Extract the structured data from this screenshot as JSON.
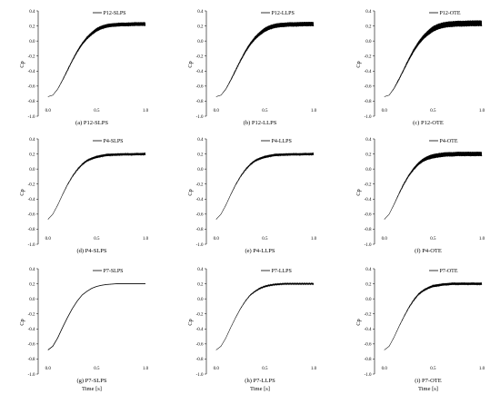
{
  "chart_data": [
    {
      "type": "line",
      "panel_id": "a",
      "caption": "(a) P12-SLPS",
      "legend": "P12-SLPS",
      "ylabel": "Cp",
      "xlabel": "",
      "xlim": [
        -0.1,
        1.0
      ],
      "ylim": [
        -1.0,
        0.4
      ],
      "x_ticks": [
        "0.0",
        "0.5",
        "1.0"
      ],
      "y_ticks": [
        "-1.0",
        "-0.8",
        "-0.6",
        "-0.4",
        "-0.2",
        "0.0",
        "0.2",
        "0.4"
      ],
      "x": [
        0.0,
        0.05,
        0.1,
        0.15,
        0.2,
        0.25,
        0.3,
        0.35,
        0.4,
        0.45,
        0.5,
        0.55,
        0.6,
        0.65,
        0.7,
        0.75,
        0.8,
        0.85,
        0.9,
        0.95,
        1.0
      ],
      "y": [
        -0.74,
        -0.72,
        -0.64,
        -0.52,
        -0.39,
        -0.26,
        -0.14,
        -0.04,
        0.04,
        0.1,
        0.15,
        0.18,
        0.2,
        0.21,
        0.215,
        0.22,
        0.22,
        0.222,
        0.225,
        0.225,
        0.225
      ],
      "oscillation": 0.025
    },
    {
      "type": "line",
      "panel_id": "b",
      "caption": "(b) P12-LLPS",
      "legend": "P12-LLPS",
      "ylabel": "Cp",
      "xlabel": "",
      "xlim": [
        -0.1,
        1.0
      ],
      "ylim": [
        -1.0,
        0.4
      ],
      "x_ticks": [
        "0.0",
        "0.5",
        "1.0"
      ],
      "y_ticks": [
        "-1.0",
        "-0.8",
        "-0.6",
        "-0.4",
        "-0.2",
        "0.0",
        "0.2",
        "0.4"
      ],
      "x": [
        0.0,
        0.05,
        0.1,
        0.15,
        0.2,
        0.25,
        0.3,
        0.35,
        0.4,
        0.45,
        0.5,
        0.55,
        0.6,
        0.65,
        0.7,
        0.75,
        0.8,
        0.85,
        0.9,
        0.95,
        1.0
      ],
      "y": [
        -0.74,
        -0.72,
        -0.64,
        -0.52,
        -0.39,
        -0.26,
        -0.14,
        -0.04,
        0.04,
        0.1,
        0.15,
        0.18,
        0.2,
        0.21,
        0.215,
        0.22,
        0.22,
        0.222,
        0.225,
        0.225,
        0.225
      ],
      "oscillation": 0.03
    },
    {
      "type": "line",
      "panel_id": "c",
      "caption": "(c) P12-OTE",
      "legend": "P12-OTE",
      "ylabel": "Cp",
      "xlabel": "",
      "xlim": [
        -0.1,
        1.0
      ],
      "ylim": [
        -1.0,
        0.4
      ],
      "x_ticks": [
        "0.0",
        "0.5",
        "1.0"
      ],
      "y_ticks": [
        "-1.0",
        "-0.8",
        "-0.6",
        "-0.4",
        "-0.2",
        "0.0",
        "0.2",
        "0.4"
      ],
      "x": [
        0.0,
        0.05,
        0.1,
        0.15,
        0.2,
        0.25,
        0.3,
        0.35,
        0.4,
        0.45,
        0.5,
        0.55,
        0.6,
        0.65,
        0.7,
        0.75,
        0.8,
        0.85,
        0.9,
        0.95,
        1.0
      ],
      "y": [
        -0.74,
        -0.72,
        -0.63,
        -0.51,
        -0.38,
        -0.25,
        -0.13,
        -0.03,
        0.05,
        0.11,
        0.16,
        0.19,
        0.21,
        0.22,
        0.225,
        0.23,
        0.23,
        0.232,
        0.235,
        0.235,
        0.235
      ],
      "oscillation": 0.04
    },
    {
      "type": "line",
      "panel_id": "d",
      "caption": "(d) P4-SLPS",
      "legend": "P4-SLPS",
      "ylabel": "Cp",
      "xlabel": "",
      "xlim": [
        -0.1,
        1.0
      ],
      "ylim": [
        -1.0,
        0.4
      ],
      "x_ticks": [
        "0.0",
        "0.5",
        "1.0"
      ],
      "y_ticks": [
        "-1.0",
        "-0.8",
        "-0.6",
        "-0.4",
        "-0.2",
        "0.0",
        "0.2",
        "0.4"
      ],
      "x": [
        0.0,
        0.05,
        0.1,
        0.15,
        0.2,
        0.25,
        0.3,
        0.35,
        0.4,
        0.45,
        0.5,
        0.55,
        0.6,
        0.65,
        0.7,
        0.75,
        0.8,
        0.85,
        0.9,
        0.95,
        1.0
      ],
      "y": [
        -0.67,
        -0.6,
        -0.48,
        -0.34,
        -0.21,
        -0.1,
        -0.01,
        0.06,
        0.11,
        0.14,
        0.16,
        0.175,
        0.185,
        0.19,
        0.19,
        0.195,
        0.195,
        0.195,
        0.197,
        0.198,
        0.2
      ],
      "oscillation": 0.015
    },
    {
      "type": "line",
      "panel_id": "e",
      "caption": "(e) P4-LLPS",
      "legend": "P4-LLPS",
      "ylabel": "Cp",
      "xlabel": "",
      "xlim": [
        -0.1,
        1.0
      ],
      "ylim": [
        -1.0,
        0.4
      ],
      "x_ticks": [
        "0.0",
        "0.5",
        "1.0"
      ],
      "y_ticks": [
        "-1.0",
        "-0.8",
        "-0.6",
        "-0.4",
        "-0.2",
        "0.0",
        "0.2",
        "0.4"
      ],
      "x": [
        0.0,
        0.05,
        0.1,
        0.15,
        0.2,
        0.25,
        0.3,
        0.35,
        0.4,
        0.45,
        0.5,
        0.55,
        0.6,
        0.65,
        0.7,
        0.75,
        0.8,
        0.85,
        0.9,
        0.95,
        1.0
      ],
      "y": [
        -0.67,
        -0.6,
        -0.48,
        -0.34,
        -0.21,
        -0.1,
        -0.01,
        0.06,
        0.11,
        0.14,
        0.16,
        0.175,
        0.185,
        0.19,
        0.19,
        0.195,
        0.195,
        0.195,
        0.197,
        0.198,
        0.2
      ],
      "oscillation": 0.015
    },
    {
      "type": "line",
      "panel_id": "f",
      "caption": "(f) P4-OTE",
      "legend": "P4-OTE",
      "ylabel": "Cp",
      "xlabel": "",
      "xlim": [
        -0.1,
        1.0
      ],
      "ylim": [
        -1.0,
        0.4
      ],
      "x_ticks": [
        "0.0",
        "0.5",
        "1.0"
      ],
      "y_ticks": [
        "-1.0",
        "-0.8",
        "-0.6",
        "-0.4",
        "-0.2",
        "0.0",
        "0.2",
        "0.4"
      ],
      "x": [
        0.0,
        0.05,
        0.1,
        0.15,
        0.2,
        0.25,
        0.3,
        0.35,
        0.4,
        0.45,
        0.5,
        0.55,
        0.6,
        0.65,
        0.7,
        0.75,
        0.8,
        0.85,
        0.9,
        0.95,
        1.0
      ],
      "y": [
        -0.67,
        -0.6,
        -0.47,
        -0.33,
        -0.2,
        -0.09,
        0.0,
        0.07,
        0.12,
        0.15,
        0.17,
        0.18,
        0.19,
        0.195,
        0.195,
        0.2,
        0.2,
        0.2,
        0.2,
        0.2,
        0.2
      ],
      "oscillation": 0.03
    },
    {
      "type": "line",
      "panel_id": "g",
      "caption": "(g) P7-SLPS",
      "legend": "P7-SLPS",
      "ylabel": "Cp",
      "xlabel": "Time [s]",
      "xlim": [
        -0.1,
        1.0
      ],
      "ylim": [
        -1.0,
        0.4
      ],
      "x_ticks": [
        "0.0",
        "0.5",
        "1.0"
      ],
      "y_ticks": [
        "-1.0",
        "-0.8",
        "-0.6",
        "-0.4",
        "-0.2",
        "0.0",
        "0.2",
        "0.4"
      ],
      "x": [
        0.0,
        0.05,
        0.1,
        0.15,
        0.2,
        0.25,
        0.3,
        0.35,
        0.4,
        0.45,
        0.5,
        0.55,
        0.6,
        0.65,
        0.7,
        0.75,
        0.8,
        0.85,
        0.9,
        0.95,
        1.0
      ],
      "y": [
        -0.68,
        -0.63,
        -0.52,
        -0.38,
        -0.25,
        -0.13,
        -0.03,
        0.05,
        0.1,
        0.14,
        0.165,
        0.18,
        0.19,
        0.195,
        0.2,
        0.2,
        0.2,
        0.2,
        0.2,
        0.2,
        0.2
      ],
      "oscillation": 0.0
    },
    {
      "type": "line",
      "panel_id": "h",
      "caption": "(h) P7-LLPS",
      "legend": "P7-LLPS",
      "ylabel": "Cp",
      "xlabel": "Time [s]",
      "xlim": [
        -0.1,
        1.0
      ],
      "ylim": [
        -1.0,
        0.4
      ],
      "x_ticks": [
        "0.0",
        "0.5",
        "1.0"
      ],
      "y_ticks": [
        "-1.0",
        "-0.8",
        "-0.6",
        "-0.4",
        "-0.2",
        "0.0",
        "0.2",
        "0.4"
      ],
      "x": [
        0.0,
        0.05,
        0.1,
        0.15,
        0.2,
        0.25,
        0.3,
        0.35,
        0.4,
        0.45,
        0.5,
        0.55,
        0.6,
        0.65,
        0.7,
        0.75,
        0.8,
        0.85,
        0.9,
        0.95,
        1.0
      ],
      "y": [
        -0.68,
        -0.63,
        -0.52,
        -0.38,
        -0.25,
        -0.13,
        -0.03,
        0.05,
        0.1,
        0.14,
        0.165,
        0.18,
        0.19,
        0.195,
        0.2,
        0.2,
        0.2,
        0.2,
        0.2,
        0.2,
        0.2
      ],
      "oscillation": 0.008
    },
    {
      "type": "line",
      "panel_id": "i",
      "caption": "(i) P7-OTE",
      "legend": "P7-OTE",
      "ylabel": "Cp",
      "xlabel": "Time [s]",
      "xlim": [
        -0.1,
        1.0
      ],
      "ylim": [
        -1.0,
        0.4
      ],
      "x_ticks": [
        "0.0",
        "0.5",
        "1.0"
      ],
      "y_ticks": [
        "-1.0",
        "-0.8",
        "-0.6",
        "-0.4",
        "-0.2",
        "0.0",
        "0.2",
        "0.4"
      ],
      "x": [
        0.0,
        0.05,
        0.1,
        0.15,
        0.2,
        0.25,
        0.3,
        0.35,
        0.4,
        0.45,
        0.5,
        0.55,
        0.6,
        0.65,
        0.7,
        0.75,
        0.8,
        0.85,
        0.9,
        0.95,
        1.0
      ],
      "y": [
        -0.68,
        -0.63,
        -0.51,
        -0.37,
        -0.24,
        -0.12,
        -0.02,
        0.06,
        0.11,
        0.145,
        0.17,
        0.18,
        0.19,
        0.195,
        0.2,
        0.2,
        0.2,
        0.2,
        0.2,
        0.2,
        0.2
      ],
      "oscillation": 0.015
    }
  ],
  "colors": {
    "line": "#000000",
    "axis": "#000000",
    "background": "#ffffff"
  }
}
